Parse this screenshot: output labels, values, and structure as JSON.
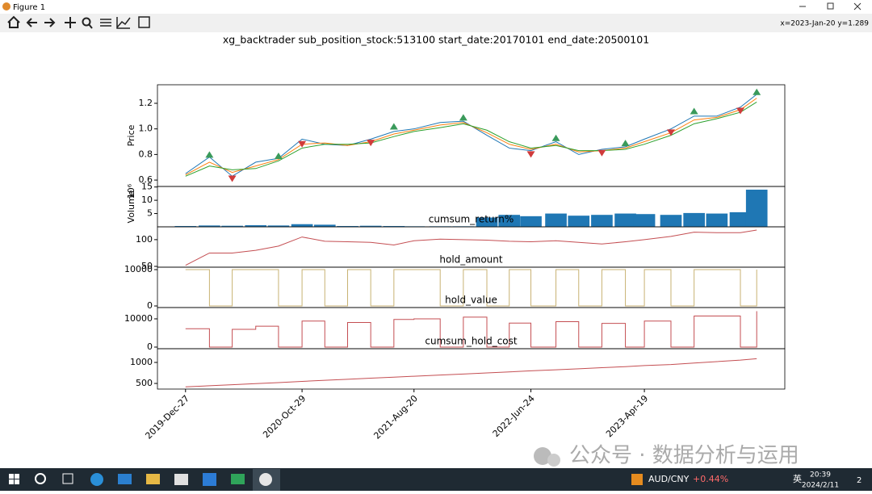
{
  "window": {
    "title": "Figure 1",
    "status": "x=2023-Jan-20 y=1.289"
  },
  "figure_title": "xg_backtrader sub_position_stock:513100 start_date:20170101 end_date:20500101",
  "chart_data": [
    {
      "type": "line",
      "ylabel": "Price",
      "x": [
        "2019-12-27",
        "2020-02-28",
        "2020-04-28",
        "2020-06-29",
        "2020-08-28",
        "2020-10-29",
        "2020-12-28",
        "2021-02-26",
        "2021-04-28",
        "2021-06-28",
        "2021-08-20",
        "2021-10-28",
        "2021-12-28",
        "2022-02-28",
        "2022-04-28",
        "2022-06-24",
        "2022-08-29",
        "2022-10-28",
        "2022-12-28",
        "2023-02-28",
        "2023-04-19",
        "2023-06-28",
        "2023-08-28",
        "2023-10-27",
        "2023-12-28",
        "2024-02-09"
      ],
      "series": [
        {
          "color": "#1f77b4",
          "values": [
            0.65,
            0.78,
            0.63,
            0.74,
            0.77,
            0.92,
            0.88,
            0.87,
            0.92,
            0.98,
            1.0,
            1.05,
            1.06,
            0.95,
            0.85,
            0.83,
            0.9,
            0.8,
            0.84,
            0.86,
            0.92,
            1.0,
            1.1,
            1.1,
            1.17,
            1.27
          ]
        },
        {
          "color": "#ff7f0e",
          "values": [
            0.64,
            0.74,
            0.66,
            0.71,
            0.76,
            0.88,
            0.89,
            0.87,
            0.9,
            0.96,
            0.99,
            1.03,
            1.05,
            0.97,
            0.88,
            0.84,
            0.88,
            0.82,
            0.83,
            0.85,
            0.9,
            0.97,
            1.07,
            1.09,
            1.15,
            1.24
          ]
        },
        {
          "color": "#2ca02c",
          "values": [
            0.63,
            0.71,
            0.68,
            0.69,
            0.75,
            0.85,
            0.88,
            0.88,
            0.89,
            0.94,
            0.98,
            1.01,
            1.04,
            0.99,
            0.9,
            0.85,
            0.87,
            0.83,
            0.83,
            0.84,
            0.88,
            0.95,
            1.04,
            1.08,
            1.13,
            1.21
          ]
        }
      ],
      "sell_markers": {
        "color": "#3a9a5b",
        "x": [
          "2020-02-28",
          "2020-08-28",
          "2021-06-28",
          "2021-12-28",
          "2022-08-29",
          "2023-02-28",
          "2023-08-28",
          "2024-02-09"
        ],
        "values": [
          0.8,
          0.79,
          1.02,
          1.09,
          0.93,
          0.89,
          1.14,
          1.29
        ]
      },
      "buy_markers": {
        "color": "#d03b3b",
        "x": [
          "2020-04-28",
          "2020-10-29",
          "2021-04-28",
          "2022-06-24",
          "2022-12-28",
          "2023-06-28",
          "2023-12-28"
        ],
        "values": [
          0.61,
          0.88,
          0.89,
          0.8,
          0.81,
          0.97,
          1.14
        ]
      },
      "xlim": [
        "2019-10-14",
        "2024-04-23"
      ],
      "ylim": [
        0.55,
        1.345
      ],
      "yticks": [
        0.6,
        0.8,
        {
          "value": 1,
          "label": "1.0"
        },
        1.2
      ]
    },
    {
      "type": "bar",
      "ylabel": "Volume",
      "offset_text": "10⁶",
      "color": "#1f77b4",
      "x": [
        "2019-12-27",
        "2020-02-28",
        "2020-04-28",
        "2020-06-29",
        "2020-08-28",
        "2020-10-29",
        "2020-12-28",
        "2021-02-26",
        "2021-04-28",
        "2021-06-28",
        "2021-08-20",
        "2021-10-28",
        "2021-12-28",
        "2022-02-28",
        "2022-04-28",
        "2022-06-24",
        "2022-08-29",
        "2022-10-28",
        "2022-12-28",
        "2023-02-28",
        "2023-04-19",
        "2023-06-28",
        "2023-08-28",
        "2023-10-27",
        "2023-12-28",
        "2024-02-09"
      ],
      "values": [
        0.3,
        0.5,
        0.4,
        0.6,
        0.5,
        1.0,
        0.8,
        0.3,
        0.4,
        0.3,
        0.2,
        0.2,
        0.2,
        3.5,
        4.5,
        4.0,
        5.0,
        4.2,
        4.5,
        5.0,
        4.8,
        4.5,
        5.2,
        5.0,
        5.5,
        14
      ],
      "xlim": [
        "2019-10-14",
        "2024-04-23"
      ],
      "ylim": [
        0,
        15.2
      ],
      "yticks": [
        5,
        10,
        15
      ]
    },
    {
      "type": "line",
      "title": "cumsum_return%",
      "color": "#c44e52",
      "x": [
        "2019-12-27",
        "2020-02-28",
        "2020-04-28",
        "2020-06-29",
        "2020-08-28",
        "2020-10-29",
        "2020-12-28",
        "2021-02-26",
        "2021-04-28",
        "2021-06-28",
        "2021-08-20",
        "2021-10-28",
        "2021-12-28",
        "2022-02-28",
        "2022-04-28",
        "2022-06-24",
        "2022-08-29",
        "2022-10-28",
        "2022-12-28",
        "2023-02-28",
        "2023-04-19",
        "2023-06-28",
        "2023-08-28",
        "2023-10-27",
        "2023-12-28",
        "2024-02-09"
      ],
      "values": [
        52,
        75,
        75,
        80,
        88,
        105,
        97,
        96,
        95,
        90,
        98,
        101,
        100,
        99,
        97,
        96,
        98,
        95,
        92,
        96,
        100,
        106,
        114,
        113,
        113,
        118
      ],
      "xlim": [
        "2019-10-14",
        "2024-04-23"
      ],
      "ylim": [
        48.5,
        124
      ],
      "yticks": [
        50,
        100
      ]
    },
    {
      "type": "step",
      "title": "hold_amount",
      "color": "#c8b273",
      "x": [
        "2019-12-27",
        "2020-02-28",
        "2020-04-28",
        "2020-06-29",
        "2020-08-28",
        "2020-10-29",
        "2020-12-28",
        "2021-02-26",
        "2021-04-28",
        "2021-06-28",
        "2021-08-20",
        "2021-10-28",
        "2021-12-28",
        "2022-02-28",
        "2022-04-28",
        "2022-06-24",
        "2022-08-29",
        "2022-10-28",
        "2022-12-28",
        "2023-02-28",
        "2023-04-19",
        "2023-06-28",
        "2023-08-28",
        "2023-10-27",
        "2023-12-28",
        "2024-02-09"
      ],
      "values": [
        10000,
        0,
        10000,
        10000,
        0,
        10000,
        0,
        10000,
        0,
        10000,
        10000,
        0,
        10000,
        0,
        10000,
        0,
        10000,
        0,
        10000,
        0,
        10000,
        0,
        10000,
        10000,
        0,
        10000
      ],
      "xlim": [
        "2019-10-14",
        "2024-04-23"
      ],
      "ylim": [
        -440,
        10670
      ],
      "yticks": [
        0,
        10000
      ]
    },
    {
      "type": "step",
      "title": "hold_value",
      "color": "#c44e52",
      "x": [
        "2019-12-27",
        "2020-02-28",
        "2020-04-28",
        "2020-06-29",
        "2020-08-28",
        "2020-10-29",
        "2020-12-28",
        "2021-02-26",
        "2021-04-28",
        "2021-06-28",
        "2021-08-20",
        "2021-10-28",
        "2021-12-28",
        "2022-02-28",
        "2022-04-28",
        "2022-06-24",
        "2022-08-29",
        "2022-10-28",
        "2022-12-28",
        "2023-02-28",
        "2023-04-19",
        "2023-06-28",
        "2023-08-28",
        "2023-10-27",
        "2023-12-28",
        "2024-02-09"
      ],
      "values": [
        6500,
        0,
        6300,
        7400,
        0,
        9200,
        0,
        8700,
        0,
        9800,
        10000,
        0,
        10600,
        0,
        8500,
        0,
        9000,
        0,
        8400,
        0,
        9200,
        0,
        11000,
        11000,
        0,
        12700
      ],
      "xlim": [
        "2019-10-14",
        "2024-04-23"
      ],
      "ylim": [
        -570,
        14000
      ],
      "yticks": [
        0,
        10000
      ]
    },
    {
      "type": "line",
      "title": "cumsum_hold_cost",
      "color": "#c44e52",
      "x": [
        "2019-12-27",
        "2020-02-28",
        "2020-04-28",
        "2020-06-29",
        "2020-08-28",
        "2020-10-29",
        "2020-12-28",
        "2021-02-26",
        "2021-04-28",
        "2021-06-28",
        "2021-08-20",
        "2021-10-28",
        "2021-12-28",
        "2022-02-28",
        "2022-04-28",
        "2022-06-24",
        "2022-08-29",
        "2022-10-28",
        "2022-12-28",
        "2023-02-28",
        "2023-04-19",
        "2023-06-28",
        "2023-08-28",
        "2023-10-27",
        "2023-12-28",
        "2024-02-09"
      ],
      "values": [
        420,
        445,
        470,
        495,
        520,
        548,
        575,
        600,
        625,
        650,
        672,
        700,
        725,
        750,
        775,
        800,
        825,
        850,
        875,
        900,
        925,
        950,
        985,
        1020,
        1055,
        1090
      ],
      "xlim": [
        "2019-10-14",
        "2024-04-23"
      ],
      "ylim": [
        366,
        1327
      ],
      "yticks": [
        500,
        1000
      ],
      "xticks": [
        {
          "value": "2019-12-27",
          "label": "2019-Dec-27"
        },
        {
          "value": "2020-10-29",
          "label": "2020-Oct-29"
        },
        {
          "value": "2021-08-20",
          "label": "2021-Aug-20"
        },
        {
          "value": "2022-06-24",
          "label": "2022-Jun-24"
        },
        {
          "value": "2023-04-19",
          "label": "2023-Apr-19"
        }
      ]
    }
  ],
  "watermark": "公众号 · 数据分析与运用",
  "taskbar": {
    "ticker": "AUD/CNY",
    "change": "+0.44%",
    "ime": "英",
    "time": "20:39",
    "date": "2024/2/11",
    "notifications": "2"
  }
}
